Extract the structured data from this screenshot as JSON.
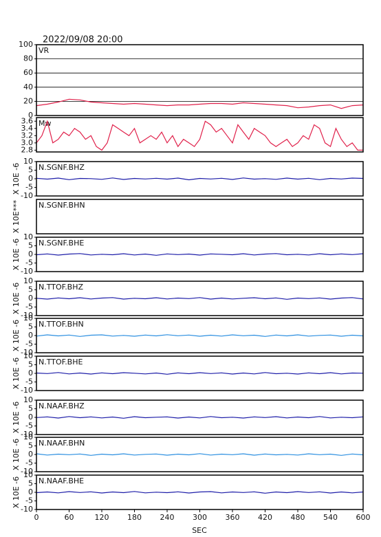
{
  "chart_data": {
    "type": "line",
    "title": "2022/09/08 20:00",
    "xlabel": "SEC",
    "xlim": [
      0,
      600
    ],
    "xticks": [
      0,
      60,
      120,
      180,
      240,
      300,
      360,
      420,
      480,
      540,
      600
    ],
    "panels": [
      {
        "type": "line",
        "label": "VR",
        "ylim": [
          0,
          100
        ],
        "yticks": [
          0,
          20,
          40,
          60,
          80,
          100
        ],
        "grid": true,
        "color": "#e0204a",
        "x": [
          0,
          20,
          40,
          60,
          80,
          100,
          120,
          140,
          160,
          180,
          200,
          220,
          240,
          260,
          280,
          300,
          320,
          340,
          360,
          380,
          400,
          420,
          440,
          460,
          480,
          500,
          520,
          540,
          560,
          580,
          600
        ],
        "values": [
          14,
          16,
          19,
          23,
          22,
          19,
          18,
          17,
          16,
          17,
          16,
          15,
          14,
          15,
          15,
          16,
          17,
          17,
          16,
          18,
          17,
          16,
          15,
          14,
          11,
          12,
          14,
          15,
          10,
          14,
          15
        ]
      },
      {
        "type": "line",
        "label": "Mw",
        "ylim": [
          2.75,
          3.7
        ],
        "yticks": [
          2.8,
          {
            "value": 3,
            "label": "3.0"
          },
          3.2,
          3.4,
          3.6
        ],
        "grid": false,
        "color": "#e0204a",
        "x": [
          0,
          10,
          20,
          30,
          40,
          50,
          60,
          70,
          80,
          90,
          100,
          110,
          120,
          130,
          140,
          150,
          160,
          170,
          180,
          190,
          200,
          210,
          220,
          230,
          240,
          250,
          260,
          270,
          280,
          290,
          300,
          310,
          320,
          330,
          340,
          350,
          360,
          370,
          380,
          390,
          400,
          410,
          420,
          430,
          440,
          450,
          460,
          470,
          480,
          490,
          500,
          510,
          520,
          530,
          540,
          550,
          560,
          570,
          580,
          590,
          600
        ],
        "values": [
          3.0,
          3.2,
          3.6,
          3.0,
          3.1,
          3.3,
          3.2,
          3.4,
          3.3,
          3.1,
          3.2,
          2.9,
          2.8,
          3.0,
          3.5,
          3.4,
          3.3,
          3.2,
          3.4,
          3.0,
          3.1,
          3.2,
          3.1,
          3.3,
          3.0,
          3.2,
          2.9,
          3.1,
          3.0,
          2.9,
          3.1,
          3.6,
          3.5,
          3.3,
          3.4,
          3.2,
          3.0,
          3.5,
          3.3,
          3.1,
          3.4,
          3.3,
          3.2,
          3.0,
          2.9,
          3.0,
          3.1,
          2.9,
          3.0,
          3.2,
          3.1,
          3.5,
          3.4,
          3.0,
          2.9,
          3.4,
          3.1,
          2.9,
          3.0,
          2.8,
          2.8
        ]
      },
      {
        "type": "line",
        "label": "N.SGNF.BHZ",
        "ylabel": "X 10E -6",
        "ylim": [
          -10,
          10
        ],
        "yticks": [
          -10,
          -5,
          0,
          5,
          10
        ],
        "grid": false,
        "color": "#1c1ca8",
        "x": [
          0,
          20,
          40,
          60,
          80,
          100,
          120,
          140,
          160,
          180,
          200,
          220,
          240,
          260,
          280,
          300,
          320,
          340,
          360,
          380,
          400,
          420,
          440,
          460,
          480,
          500,
          520,
          540,
          560,
          580,
          600
        ],
        "values": [
          0.3,
          -0.2,
          0.4,
          -0.5,
          0.2,
          0.1,
          -0.3,
          0.5,
          -0.4,
          0.2,
          -0.1,
          0.3,
          -0.2,
          0.4,
          -0.6,
          0.2,
          -0.1,
          0.3,
          -0.4,
          0.5,
          -0.2,
          0.1,
          -0.3,
          0.4,
          -0.2,
          0.3,
          -0.5,
          0.2,
          -0.1,
          0.4,
          0.2
        ]
      },
      {
        "type": "line",
        "label": "N.SGNF.BHN",
        "ylabel": "X 10E***"
      },
      {
        "type": "line",
        "label": "N.SGNF.BHE",
        "ylabel": "X 10E -6",
        "ylim": [
          -10,
          10
        ],
        "yticks": [
          -10,
          -5,
          0,
          5,
          10
        ],
        "grid": false,
        "color": "#1c1ca8",
        "x": [
          0,
          20,
          40,
          60,
          80,
          100,
          120,
          140,
          160,
          180,
          200,
          220,
          240,
          260,
          280,
          300,
          320,
          340,
          360,
          380,
          400,
          420,
          440,
          460,
          480,
          500,
          520,
          540,
          560,
          580,
          600
        ],
        "values": [
          -0.2,
          0.3,
          -0.4,
          0.2,
          0.5,
          -0.3,
          0.1,
          -0.2,
          0.4,
          -0.3,
          0.2,
          -0.5,
          0.3,
          -0.1,
          0.2,
          -0.4,
          0.3,
          0.1,
          -0.2,
          0.4,
          -0.3,
          0.2,
          0.5,
          -0.2,
          0.1,
          -0.3,
          0.4,
          -0.2,
          0.3,
          -0.1,
          0.4
        ]
      },
      {
        "type": "line",
        "label": "N.TTOF.BHZ",
        "ylabel": "X 10E -6",
        "ylim": [
          -10,
          10
        ],
        "yticks": [
          -10,
          -5,
          0,
          5,
          10
        ],
        "grid": false,
        "color": "#1c1ca8",
        "x": [
          0,
          20,
          40,
          60,
          80,
          100,
          120,
          140,
          160,
          180,
          200,
          220,
          240,
          260,
          280,
          300,
          320,
          340,
          360,
          380,
          400,
          420,
          440,
          460,
          480,
          500,
          520,
          540,
          560,
          580,
          600
        ],
        "values": [
          0.1,
          -0.4,
          0.3,
          -0.2,
          0.4,
          -0.3,
          0.2,
          0.5,
          -0.4,
          0.1,
          -0.2,
          0.4,
          -0.3,
          0.2,
          -0.1,
          0.5,
          -0.4,
          0.2,
          -0.3,
          0.1,
          0.4,
          -0.2,
          0.3,
          -0.5,
          0.2,
          -0.1,
          0.3,
          -0.4,
          0.2,
          0.5,
          -0.3
        ]
      },
      {
        "type": "line",
        "label": "N.TTOF.BHN",
        "ylabel": "X 10E -6",
        "ylim": [
          -10,
          10
        ],
        "yticks": [
          -10,
          -5,
          0,
          5,
          10
        ],
        "grid": false,
        "color": "#2a8ee0",
        "x": [
          0,
          20,
          40,
          60,
          80,
          100,
          120,
          140,
          160,
          180,
          200,
          220,
          240,
          260,
          280,
          300,
          320,
          340,
          360,
          380,
          400,
          420,
          440,
          460,
          480,
          500,
          520,
          540,
          560,
          580,
          600
        ],
        "values": [
          -0.3,
          0.4,
          -0.2,
          0.3,
          -0.5,
          0.2,
          0.4,
          -0.3,
          0.1,
          -0.4,
          0.3,
          -0.2,
          0.5,
          -0.1,
          0.3,
          -0.4,
          0.2,
          -0.3,
          0.4,
          -0.1,
          0.2,
          -0.5,
          0.3,
          -0.2,
          0.4,
          -0.3,
          0.1,
          0.3,
          -0.4,
          0.2,
          -0.2
        ]
      },
      {
        "type": "line",
        "label": "N.TTOF.BHE",
        "ylabel": "X 10E -6",
        "ylim": [
          -10,
          10
        ],
        "yticks": [
          -10,
          -5,
          0,
          5,
          10
        ],
        "grid": false,
        "color": "#1c1ca8",
        "x": [
          0,
          20,
          40,
          60,
          80,
          100,
          120,
          140,
          160,
          180,
          200,
          220,
          240,
          260,
          280,
          300,
          320,
          340,
          360,
          380,
          400,
          420,
          440,
          460,
          480,
          500,
          520,
          540,
          560,
          580,
          600
        ],
        "values": [
          0.2,
          -0.1,
          0.5,
          -0.3,
          0.2,
          -0.4,
          0.3,
          -0.2,
          0.4,
          0.1,
          -0.3,
          0.2,
          -0.5,
          0.3,
          -0.2,
          0.4,
          -0.1,
          0.3,
          -0.4,
          0.2,
          -0.3,
          0.5,
          -0.2,
          0.1,
          -0.4,
          0.3,
          -0.2,
          0.4,
          -0.3,
          0.2,
          0.1
        ]
      },
      {
        "type": "line",
        "label": "N.NAAF.BHZ",
        "ylabel": "X 10E -6",
        "ylim": [
          -10,
          10
        ],
        "yticks": [
          -10,
          -5,
          0,
          5,
          10
        ],
        "grid": false,
        "color": "#1c1ca8",
        "x": [
          0,
          20,
          40,
          60,
          80,
          100,
          120,
          140,
          160,
          180,
          200,
          220,
          240,
          260,
          280,
          300,
          320,
          340,
          360,
          380,
          400,
          420,
          440,
          460,
          480,
          500,
          520,
          540,
          560,
          580,
          600
        ],
        "values": [
          -0.1,
          0.3,
          -0.4,
          0.5,
          -0.2,
          0.3,
          -0.3,
          0.2,
          -0.5,
          0.4,
          -0.2,
          0.1,
          0.3,
          -0.4,
          0.2,
          -0.3,
          0.5,
          -0.2,
          0.1,
          -0.4,
          0.3,
          -0.1,
          0.4,
          -0.3,
          0.2,
          -0.2,
          0.5,
          -0.3,
          0.1,
          -0.2,
          0.3
        ]
      },
      {
        "type": "line",
        "label": "N.NAAF.BHN",
        "ylabel": "X 10E -6",
        "ylim": [
          -10,
          10
        ],
        "yticks": [
          -10,
          -5,
          0,
          5,
          10
        ],
        "grid": false,
        "color": "#2a8ee0",
        "x": [
          0,
          20,
          40,
          60,
          80,
          100,
          120,
          140,
          160,
          180,
          200,
          220,
          240,
          260,
          280,
          300,
          320,
          340,
          360,
          380,
          400,
          420,
          440,
          460,
          480,
          500,
          520,
          540,
          560,
          580,
          600
        ],
        "values": [
          0.4,
          -0.3,
          0.2,
          -0.1,
          0.3,
          -0.5,
          0.2,
          -0.2,
          0.4,
          -0.3,
          0.1,
          0.3,
          -0.4,
          0.2,
          -0.2,
          0.5,
          -0.3,
          0.2,
          -0.1,
          0.4,
          -0.4,
          0.3,
          -0.2,
          0.1,
          -0.3,
          0.4,
          -0.1,
          0.2,
          -0.5,
          0.3,
          -0.2
        ]
      },
      {
        "type": "line",
        "label": "N.NAAF.BHE",
        "ylabel": "X 10E -6",
        "ylim": [
          -10,
          10
        ],
        "yticks": [
          -10,
          -5,
          0,
          5,
          10
        ],
        "grid": false,
        "color": "#1c1ca8",
        "x": [
          0,
          20,
          40,
          60,
          80,
          100,
          120,
          140,
          160,
          180,
          200,
          220,
          240,
          260,
          280,
          300,
          320,
          340,
          360,
          380,
          400,
          420,
          440,
          460,
          480,
          500,
          520,
          540,
          560,
          580,
          600
        ],
        "values": [
          -0.2,
          0.2,
          -0.3,
          0.4,
          -0.1,
          0.3,
          -0.4,
          0.2,
          -0.2,
          0.5,
          -0.3,
          0.1,
          -0.2,
          0.3,
          -0.4,
          0.2,
          0.4,
          -0.3,
          0.2,
          -0.1,
          0.3,
          -0.5,
          0.2,
          -0.2,
          0.4,
          -0.1,
          0.3,
          -0.4,
          0.2,
          -0.3,
          0.2
        ]
      }
    ]
  }
}
